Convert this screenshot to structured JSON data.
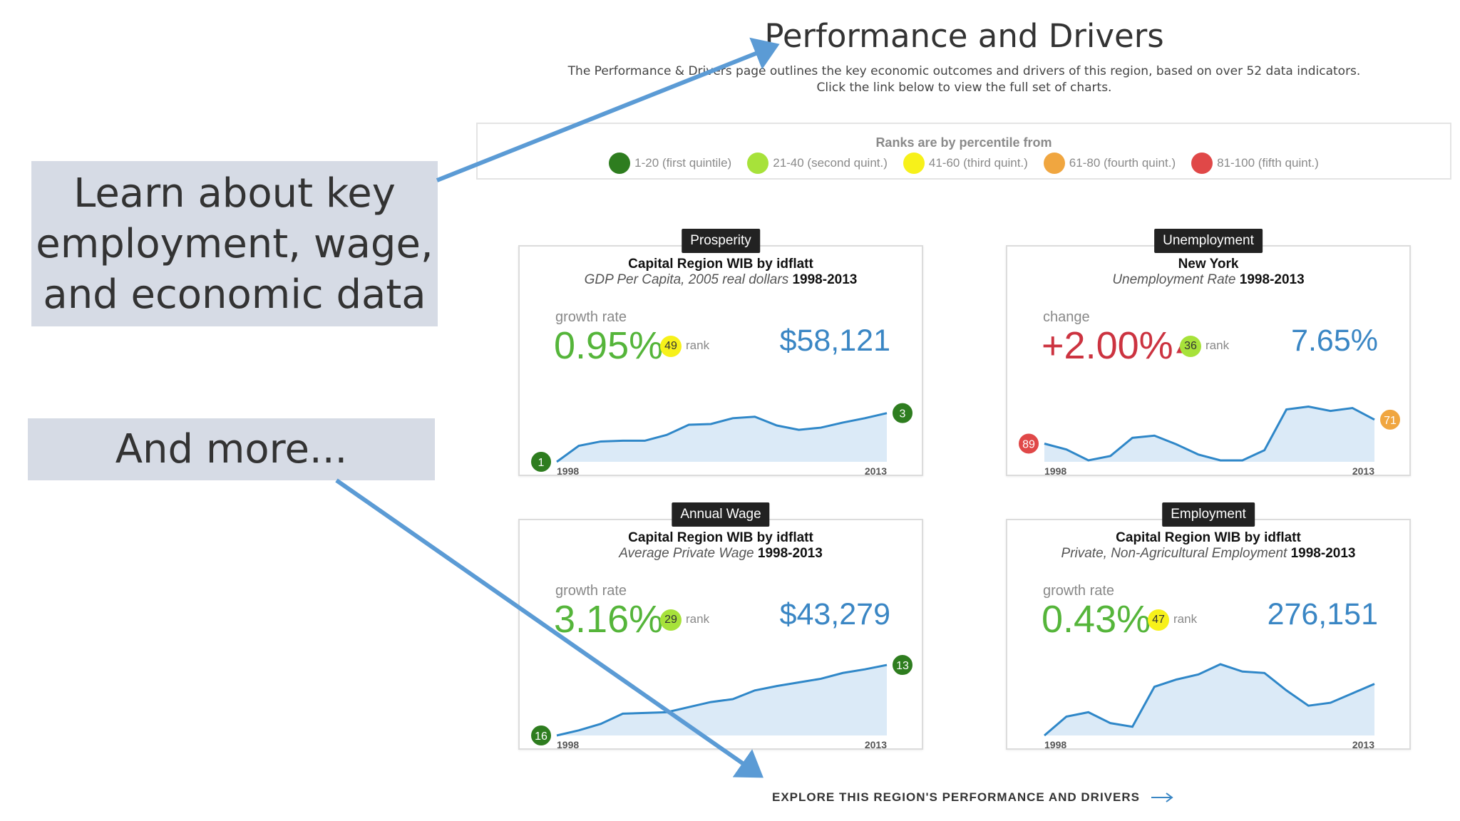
{
  "header": {
    "title": "Performance and Drivers",
    "description_line1": "The Performance & Drivers page outlines the key economic outcomes and drivers of this region, based on over 52 data indicators.",
    "description_line2": "Click the link below to view the full set of charts."
  },
  "legend": {
    "title": "Ranks are by percentile from",
    "items": [
      {
        "label": "1-20 (first quintile)",
        "color": "#2e7d1f"
      },
      {
        "label": "21-40 (second quint.)",
        "color": "#a7e23a"
      },
      {
        "label": "41-60 (third quint.)",
        "color": "#f7f11a"
      },
      {
        "label": "61-80 (fourth quint.)",
        "color": "#f0a640"
      },
      {
        "label": "81-100 (fifth quint.)",
        "color": "#e04848"
      }
    ]
  },
  "callouts": {
    "learn": [
      "Learn about key",
      "employment, wage,",
      "and economic data"
    ],
    "more": "And more..."
  },
  "cards": [
    {
      "tag": "Prosperity",
      "region": "Capital Region WIB by idflatt",
      "subtitle_italic": "GDP Per Capita, 2005 real dollars",
      "years": "1998-2013",
      "metric_label": "growth rate",
      "metric_value": "0.95%",
      "metric_color": "#55b53a",
      "rank": "49",
      "rank_color": "#f7f11a",
      "rank_label": "rank",
      "big_value": "$58,121",
      "start_year": "1998",
      "end_year": "2013",
      "start_rank": "1",
      "start_rank_color": "#2e7d1f",
      "end_rank": "3",
      "end_rank_color": "#2e7d1f",
      "series": [
        0.0,
        0.22,
        0.28,
        0.29,
        0.29,
        0.37,
        0.51,
        0.52,
        0.6,
        0.62,
        0.5,
        0.44,
        0.47,
        0.54,
        0.6,
        0.67
      ]
    },
    {
      "tag": "Unemployment",
      "region": "New York",
      "subtitle_italic": "Unemployment Rate",
      "years": "1998-2013",
      "metric_label": "change",
      "metric_value": "+2.00%",
      "metric_color": "#cc3340",
      "rank": "36",
      "rank_color": "#a7e23a",
      "rank_label": "rank",
      "big_value": "7.65%",
      "start_year": "1998",
      "end_year": "2013",
      "start_rank": "89",
      "start_rank_color": "#e04848",
      "end_rank": "71",
      "end_rank_color": "#f0a640",
      "series": [
        0.25,
        0.17,
        0.02,
        0.08,
        0.33,
        0.36,
        0.24,
        0.1,
        0.02,
        0.02,
        0.16,
        0.72,
        0.76,
        0.7,
        0.74,
        0.58
      ]
    },
    {
      "tag": "Annual Wage",
      "region": "Capital Region WIB by idflatt",
      "subtitle_italic": "Average Private Wage",
      "years": "1998-2013",
      "metric_label": "growth rate",
      "metric_value": "3.16%",
      "metric_color": "#55b53a",
      "rank": "29",
      "rank_color": "#a7e23a",
      "rank_label": "rank",
      "big_value": "$43,279",
      "start_year": "1998",
      "end_year": "2013",
      "start_rank": "16",
      "start_rank_color": "#2e7d1f",
      "end_rank": "13",
      "end_rank_color": "#2e7d1f",
      "series": [
        0.0,
        0.07,
        0.16,
        0.3,
        0.31,
        0.32,
        0.39,
        0.46,
        0.5,
        0.62,
        0.68,
        0.73,
        0.78,
        0.86,
        0.91,
        0.97
      ]
    },
    {
      "tag": "Employment",
      "region": "Capital Region WIB by idflatt",
      "subtitle_italic": "Private, Non-Agricultural Employment",
      "years": "1998-2013",
      "metric_label": "growth rate",
      "metric_value": "0.43%",
      "metric_color": "#55b53a",
      "rank": "47",
      "rank_color": "#f7f11a",
      "rank_label": "rank",
      "big_value": "276,151",
      "start_year": "1998",
      "end_year": "2013",
      "start_rank": "",
      "start_rank_color": "",
      "end_rank": "",
      "end_rank_color": "",
      "series": [
        0.0,
        0.26,
        0.32,
        0.17,
        0.12,
        0.67,
        0.77,
        0.84,
        0.98,
        0.88,
        0.86,
        0.62,
        0.41,
        0.45,
        0.58,
        0.71
      ]
    }
  ],
  "explore_link": "EXPLORE THIS REGION'S PERFORMANCE AND DRIVERS"
}
